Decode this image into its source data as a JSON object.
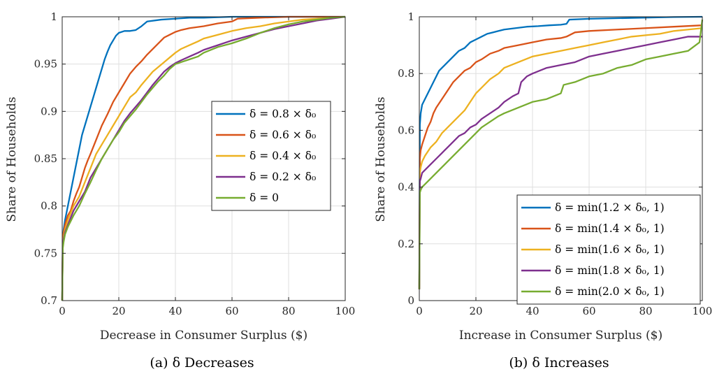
{
  "chart_data": [
    {
      "type": "line",
      "caption": "(a) δ Decreases",
      "xlabel": "Decrease in Consumer Surplus ($)",
      "ylabel": "Share of Households",
      "xlim": [
        0,
        100
      ],
      "ylim": [
        0.7,
        1.0
      ],
      "xticks": [
        0,
        20,
        40,
        60,
        80,
        100
      ],
      "xtick_labels": [
        "0",
        "20",
        "40",
        "60",
        "80",
        "100"
      ],
      "yticks": [
        0.7,
        0.75,
        0.8,
        0.85,
        0.9,
        0.95,
        1.0
      ],
      "ytick_labels": [
        "0.7",
        "0.75",
        "0.8",
        "0.85",
        "0.9",
        "0.95",
        "1"
      ],
      "grid": true,
      "legend_position": "right-center",
      "series": [
        {
          "name": "δ = 0.8 × δ₀",
          "color": "#0072BD",
          "x": [
            0,
            0.2,
            0.5,
            1,
            2,
            3,
            4,
            5,
            6,
            7,
            8,
            9,
            10,
            11,
            12,
            13,
            14,
            15,
            16,
            17,
            18,
            19,
            20,
            22,
            24,
            26,
            28,
            30,
            35,
            40,
            45,
            50,
            60,
            70,
            80,
            90,
            100
          ],
          "y": [
            0.7,
            0.765,
            0.775,
            0.785,
            0.8,
            0.815,
            0.83,
            0.845,
            0.86,
            0.875,
            0.885,
            0.895,
            0.905,
            0.915,
            0.925,
            0.935,
            0.945,
            0.955,
            0.963,
            0.97,
            0.975,
            0.98,
            0.983,
            0.985,
            0.985,
            0.986,
            0.99,
            0.995,
            0.997,
            0.998,
            0.999,
            0.999,
            1.0,
            1.0,
            1.0,
            1.0,
            1.0
          ]
        },
        {
          "name": "δ = 0.6 × δ₀",
          "color": "#D95319",
          "x": [
            0,
            0.2,
            0.5,
            1,
            2,
            3,
            4,
            5,
            6,
            7,
            8,
            9,
            10,
            12,
            14,
            16,
            18,
            20,
            22,
            24,
            26,
            28,
            30,
            32,
            34,
            36,
            38,
            40,
            42,
            45,
            50,
            55,
            60,
            62,
            70,
            80,
            90,
            100
          ],
          "y": [
            0.7,
            0.765,
            0.772,
            0.78,
            0.79,
            0.795,
            0.805,
            0.813,
            0.82,
            0.83,
            0.84,
            0.848,
            0.855,
            0.87,
            0.885,
            0.897,
            0.91,
            0.92,
            0.93,
            0.94,
            0.947,
            0.953,
            0.96,
            0.966,
            0.972,
            0.978,
            0.981,
            0.984,
            0.986,
            0.988,
            0.99,
            0.993,
            0.995,
            0.998,
            0.999,
            1.0,
            1.0,
            1.0
          ]
        },
        {
          "name": "δ = 0.4 × δ₀",
          "color": "#EDB120",
          "x": [
            0,
            0.2,
            0.5,
            1,
            2,
            4,
            6,
            8,
            10,
            12,
            14,
            16,
            18,
            20,
            22,
            24,
            26,
            28,
            30,
            32,
            34,
            36,
            38,
            40,
            42,
            45,
            48,
            50,
            55,
            60,
            65,
            70,
            75,
            80,
            85,
            90,
            95,
            100
          ],
          "y": [
            0.7,
            0.76,
            0.768,
            0.775,
            0.785,
            0.8,
            0.81,
            0.825,
            0.84,
            0.855,
            0.865,
            0.875,
            0.885,
            0.895,
            0.905,
            0.915,
            0.92,
            0.928,
            0.935,
            0.942,
            0.947,
            0.952,
            0.957,
            0.962,
            0.966,
            0.97,
            0.974,
            0.977,
            0.981,
            0.985,
            0.988,
            0.99,
            0.993,
            0.995,
            0.997,
            0.998,
            0.999,
            1.0
          ]
        },
        {
          "name": "δ = 0.2 × δ₀",
          "color": "#7E2F8E",
          "x": [
            0,
            0.2,
            0.5,
            1,
            2,
            4,
            6,
            8,
            10,
            12,
            14,
            16,
            18,
            20,
            22,
            24,
            26,
            28,
            30,
            32,
            34,
            36,
            38,
            40,
            42,
            45,
            48,
            50,
            55,
            60,
            65,
            70,
            75,
            80,
            85,
            90,
            95,
            100
          ],
          "y": [
            0.7,
            0.758,
            0.765,
            0.772,
            0.78,
            0.795,
            0.805,
            0.815,
            0.83,
            0.84,
            0.85,
            0.86,
            0.87,
            0.88,
            0.89,
            0.898,
            0.905,
            0.912,
            0.92,
            0.928,
            0.935,
            0.942,
            0.947,
            0.951,
            0.954,
            0.958,
            0.962,
            0.965,
            0.97,
            0.975,
            0.979,
            0.983,
            0.987,
            0.99,
            0.993,
            0.996,
            0.998,
            1.0
          ]
        },
        {
          "name": "δ = 0",
          "color": "#77AC30",
          "x": [
            0,
            0.2,
            0.5,
            1,
            2,
            4,
            6,
            8,
            10,
            12,
            14,
            16,
            18,
            20,
            22,
            24,
            26,
            28,
            30,
            32,
            34,
            36,
            38,
            40,
            42,
            45,
            48,
            50,
            55,
            60,
            65,
            70,
            75,
            80,
            85,
            90,
            95,
            100
          ],
          "y": [
            0.7,
            0.755,
            0.762,
            0.77,
            0.778,
            0.79,
            0.8,
            0.813,
            0.825,
            0.838,
            0.85,
            0.86,
            0.87,
            0.878,
            0.888,
            0.895,
            0.902,
            0.91,
            0.918,
            0.925,
            0.932,
            0.938,
            0.945,
            0.95,
            0.952,
            0.955,
            0.958,
            0.962,
            0.968,
            0.972,
            0.977,
            0.983,
            0.988,
            0.992,
            0.995,
            0.997,
            0.999,
            1.0
          ]
        }
      ]
    },
    {
      "type": "line",
      "caption": "(b) δ Increases",
      "xlabel": "Increase in Consumer Surplus ($)",
      "ylabel": "Share of Households",
      "xlim": [
        0,
        100
      ],
      "ylim": [
        0,
        1.0
      ],
      "xticks": [
        0,
        20,
        40,
        60,
        80,
        100
      ],
      "xtick_labels": [
        "0",
        "20",
        "40",
        "60",
        "80",
        "100"
      ],
      "yticks": [
        0,
        0.2,
        0.4,
        0.6,
        0.8,
        1.0
      ],
      "ytick_labels": [
        "0",
        "0.2",
        "0.4",
        "0.6",
        "0.8",
        "1"
      ],
      "grid": true,
      "legend_position": "bottom-right",
      "series": [
        {
          "name": "δ = min(1.2 × δ₀, 1)",
          "color": "#0072BD",
          "x": [
            0,
            0.2,
            0.5,
            1,
            2,
            3,
            4,
            5,
            6,
            7,
            8,
            10,
            12,
            14,
            16,
            18,
            20,
            22,
            24,
            26,
            28,
            30,
            34,
            38,
            42,
            46,
            50,
            52,
            53,
            60,
            70,
            80,
            90,
            100
          ],
          "y": [
            0.04,
            0.62,
            0.66,
            0.69,
            0.71,
            0.73,
            0.75,
            0.77,
            0.79,
            0.81,
            0.82,
            0.84,
            0.86,
            0.88,
            0.89,
            0.91,
            0.92,
            0.93,
            0.94,
            0.945,
            0.95,
            0.955,
            0.96,
            0.965,
            0.967,
            0.97,
            0.972,
            0.975,
            0.99,
            0.993,
            0.995,
            0.997,
            0.999,
            1.0
          ]
        },
        {
          "name": "δ = min(1.4 × δ₀, 1)",
          "color": "#D95319",
          "x": [
            0,
            0.2,
            0.5,
            1,
            2,
            3,
            4,
            5,
            6,
            8,
            10,
            12,
            14,
            16,
            18,
            20,
            22,
            25,
            28,
            30,
            35,
            40,
            45,
            50,
            52,
            55,
            60,
            70,
            80,
            90,
            100
          ],
          "y": [
            0.04,
            0.5,
            0.53,
            0.55,
            0.58,
            0.61,
            0.63,
            0.66,
            0.68,
            0.71,
            0.74,
            0.77,
            0.79,
            0.81,
            0.82,
            0.84,
            0.85,
            0.87,
            0.88,
            0.89,
            0.9,
            0.91,
            0.92,
            0.925,
            0.93,
            0.945,
            0.95,
            0.955,
            0.96,
            0.965,
            0.97
          ]
        },
        {
          "name": "δ = min(1.6 × δ₀, 1)",
          "color": "#EDB120",
          "x": [
            0,
            0.2,
            0.5,
            1,
            2,
            4,
            6,
            8,
            10,
            12,
            14,
            16,
            18,
            20,
            22,
            25,
            28,
            30,
            35,
            40,
            45,
            50,
            55,
            60,
            65,
            70,
            75,
            80,
            85,
            90,
            95,
            100
          ],
          "y": [
            0.04,
            0.45,
            0.47,
            0.49,
            0.51,
            0.54,
            0.56,
            0.59,
            0.61,
            0.63,
            0.65,
            0.67,
            0.7,
            0.73,
            0.75,
            0.78,
            0.8,
            0.82,
            0.84,
            0.86,
            0.87,
            0.88,
            0.89,
            0.9,
            0.91,
            0.92,
            0.93,
            0.935,
            0.94,
            0.95,
            0.955,
            0.96
          ]
        },
        {
          "name": "δ = min(1.8 × δ₀, 1)",
          "color": "#7E2F8E",
          "x": [
            0,
            0.2,
            0.5,
            1,
            2,
            4,
            6,
            8,
            10,
            12,
            14,
            16,
            18,
            20,
            22,
            25,
            28,
            30,
            33,
            35,
            36,
            38,
            40,
            45,
            50,
            55,
            60,
            65,
            70,
            75,
            80,
            85,
            90,
            95,
            100
          ],
          "y": [
            0.04,
            0.42,
            0.43,
            0.45,
            0.46,
            0.48,
            0.5,
            0.52,
            0.54,
            0.56,
            0.58,
            0.59,
            0.61,
            0.62,
            0.64,
            0.66,
            0.68,
            0.7,
            0.72,
            0.73,
            0.77,
            0.79,
            0.8,
            0.82,
            0.83,
            0.84,
            0.86,
            0.87,
            0.88,
            0.89,
            0.9,
            0.91,
            0.92,
            0.93,
            0.93
          ]
        },
        {
          "name": "δ = min(2.0 × δ₀, 1)",
          "color": "#77AC30",
          "x": [
            0,
            0.2,
            0.5,
            1,
            2,
            4,
            6,
            8,
            10,
            12,
            14,
            16,
            18,
            20,
            22,
            25,
            28,
            30,
            35,
            40,
            45,
            50,
            51,
            55,
            60,
            65,
            70,
            75,
            80,
            85,
            90,
            95,
            99,
            100
          ],
          "y": [
            0.04,
            0.38,
            0.39,
            0.4,
            0.41,
            0.43,
            0.45,
            0.47,
            0.49,
            0.51,
            0.53,
            0.55,
            0.57,
            0.59,
            0.61,
            0.63,
            0.65,
            0.66,
            0.68,
            0.7,
            0.71,
            0.73,
            0.76,
            0.77,
            0.79,
            0.8,
            0.82,
            0.83,
            0.85,
            0.86,
            0.87,
            0.88,
            0.91,
            0.99
          ]
        }
      ]
    }
  ]
}
